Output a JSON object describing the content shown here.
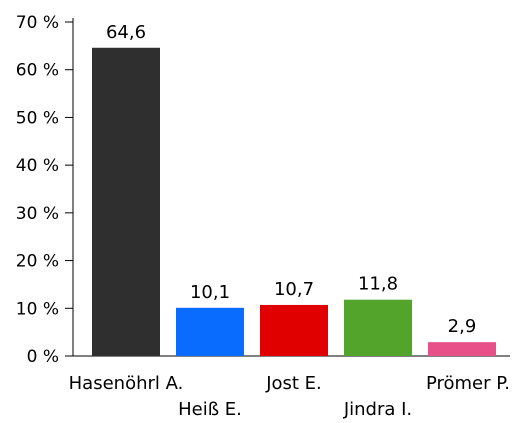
{
  "chart_data": {
    "type": "bar",
    "categories": [
      "Hasenöhrl A.",
      "Heiß E.",
      "Jost E.",
      "Jindra I.",
      "Prömer P."
    ],
    "values": [
      64.6,
      10.1,
      10.7,
      11.8,
      2.9
    ],
    "value_labels": [
      "64,6",
      "10,1",
      "10,7",
      "11,8",
      "2,9"
    ],
    "colors": [
      "#2f2f2f",
      "#0a6cff",
      "#e00000",
      "#52a42a",
      "#e8508a"
    ],
    "ylim": [
      0,
      70
    ],
    "yticks": [
      0,
      10,
      20,
      30,
      40,
      50,
      60,
      70
    ],
    "ytick_labels": [
      "0 %",
      "10 %",
      "20 %",
      "30 %",
      "40 %",
      "50 %",
      "60 %",
      "70 %"
    ],
    "title": "",
    "xlabel": "",
    "ylabel": "",
    "grid": false,
    "legend": "none"
  }
}
